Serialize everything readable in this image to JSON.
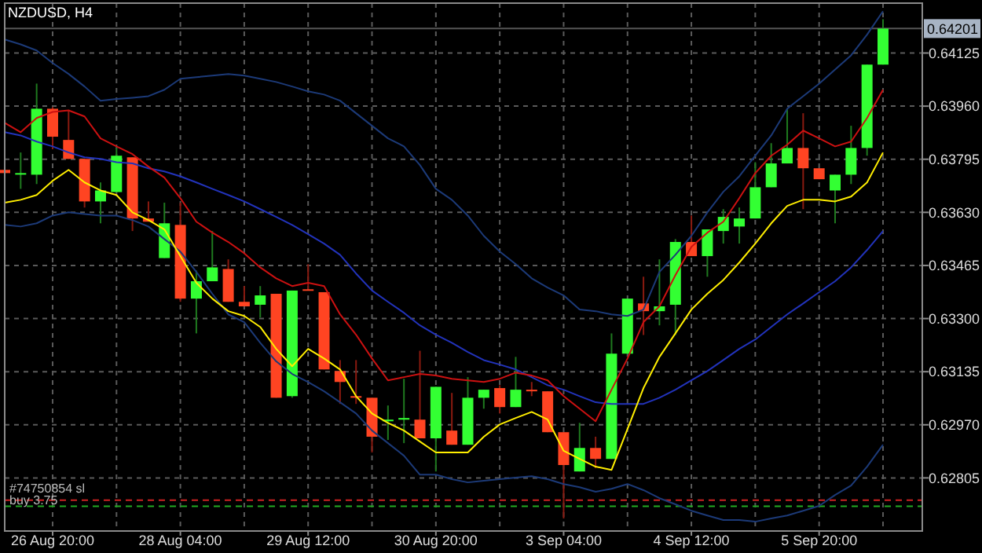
{
  "chart_data": {
    "type": "candlestick",
    "title": "NZDUSD, H4",
    "categories": [
      null,
      null,
      null,
      "26 Aug 20:00",
      null,
      null,
      null,
      null,
      null,
      null,
      null,
      "28 Aug 04:00",
      null,
      null,
      null,
      null,
      null,
      null,
      null,
      "29 Aug 12:00",
      null,
      null,
      null,
      null,
      null,
      null,
      null,
      "30 Aug 20:00",
      null,
      null,
      null,
      null,
      null,
      null,
      null,
      "3 Sep 04:00",
      null,
      null,
      null,
      null,
      null,
      null,
      null,
      "4 Sep 12:00",
      null,
      null,
      null,
      null,
      null,
      null,
      null,
      "5 Sep 20:00",
      null,
      null,
      null,
      null
    ],
    "ohlc": [
      [
        0.63762,
        0.63767,
        0.63747,
        0.63752
      ],
      [
        0.63752,
        0.63816,
        0.63703,
        0.63752
      ],
      [
        0.63747,
        0.6403,
        0.63718,
        0.63952
      ],
      [
        0.63952,
        0.63957,
        0.63826,
        0.63865
      ],
      [
        0.63855,
        0.63947,
        0.63796,
        0.63796
      ],
      [
        0.63796,
        0.63796,
        0.63645,
        0.63664
      ],
      [
        0.63664,
        0.63723,
        0.63596,
        0.63698
      ],
      [
        0.63693,
        0.6383,
        0.63693,
        0.63806
      ],
      [
        0.63801,
        0.63801,
        0.63572,
        0.63611
      ],
      [
        0.63611,
        0.63664,
        0.63601,
        0.63601
      ],
      [
        0.63488,
        0.6366,
        0.63488,
        0.63596
      ],
      [
        0.63591,
        0.6366,
        0.63352,
        0.63362
      ],
      [
        0.63362,
        0.63449,
        0.63254,
        0.63416
      ],
      [
        0.63416,
        0.63572,
        0.63416,
        0.63459
      ],
      [
        0.63454,
        0.63484,
        0.63352,
        0.63352
      ],
      [
        0.63352,
        0.63401,
        0.63338,
        0.63338
      ],
      [
        0.63343,
        0.63401,
        0.63303,
        0.63372
      ],
      [
        0.63377,
        0.63377,
        0.63054,
        0.63054
      ],
      [
        0.63059,
        0.63387,
        0.63054,
        0.63387
      ],
      [
        0.63391,
        0.63469,
        0.63387,
        0.63387
      ],
      [
        0.63382,
        0.63382,
        0.63142,
        0.63142
      ],
      [
        0.63137,
        0.63171,
        0.63035,
        0.63103
      ],
      [
        0.63059,
        0.63171,
        0.63035,
        0.63054
      ],
      [
        0.63054,
        0.63054,
        0.62884,
        0.62933
      ],
      [
        0.62981,
        0.6303,
        0.62923,
        0.62986
      ],
      [
        0.62986,
        0.63113,
        0.62913,
        0.62991
      ],
      [
        0.62986,
        0.632,
        0.62928,
        0.62928
      ],
      [
        0.62928,
        0.63088,
        0.62825,
        0.63088
      ],
      [
        0.62952,
        0.63069,
        0.62908,
        0.62908
      ],
      [
        0.62908,
        0.63118,
        0.62908,
        0.63054
      ],
      [
        0.63054,
        0.63079,
        0.6302,
        0.63079
      ],
      [
        0.63084,
        0.63093,
        0.63005,
        0.63025
      ],
      [
        0.63025,
        0.63181,
        0.63025,
        0.63079
      ],
      [
        0.63079,
        0.63103,
        0.63059,
        0.63074
      ],
      [
        0.63074,
        0.63074,
        0.62947,
        0.62947
      ],
      [
        0.62947,
        0.62947,
        0.62679,
        0.62845
      ],
      [
        0.62825,
        0.62976,
        0.62825,
        0.62898
      ],
      [
        0.62898,
        0.62933,
        0.62835,
        0.62864
      ],
      [
        0.62864,
        0.63254,
        0.62864,
        0.63191
      ],
      [
        0.63191,
        0.63362,
        0.63191,
        0.63362
      ],
      [
        0.63347,
        0.6343,
        0.63249,
        0.63323
      ],
      [
        0.63323,
        0.63484,
        0.63279,
        0.63338
      ],
      [
        0.63343,
        0.63547,
        0.63249,
        0.63538
      ],
      [
        0.63538,
        0.6362,
        0.63494,
        0.63494
      ],
      [
        0.63494,
        0.63577,
        0.6343,
        0.63577
      ],
      [
        0.63572,
        0.6364,
        0.63533,
        0.63616
      ],
      [
        0.63586,
        0.63645,
        0.63533,
        0.63611
      ],
      [
        0.63611,
        0.63786,
        0.63611,
        0.63708
      ],
      [
        0.63708,
        0.63845,
        0.63708,
        0.63782
      ],
      [
        0.63782,
        0.63952,
        0.63782,
        0.6383
      ],
      [
        0.6383,
        0.63938,
        0.6364,
        0.63767
      ],
      [
        0.63767,
        0.63767,
        0.63733,
        0.63733
      ],
      [
        0.63698,
        0.63747,
        0.63596,
        0.63747
      ],
      [
        0.63747,
        0.63899,
        0.63718,
        0.6383
      ],
      [
        0.6383,
        0.64089,
        0.63806,
        0.64089
      ],
      [
        0.64089,
        0.6423,
        0.64089,
        0.64201
      ]
    ],
    "colors": [
      "#ff4422",
      "#33ff33",
      "#33ff33",
      "#ff4422",
      "#ff4422",
      "#ff4422",
      "#33ff33",
      "#33ff33",
      "#ff4422",
      "#ff4422",
      "#33ff33",
      "#ff4422",
      "#33ff33",
      "#33ff33",
      "#ff4422",
      "#ff4422",
      "#33ff33",
      "#ff4422",
      "#33ff33",
      "#ff4422",
      "#ff4422",
      "#ff4422",
      "#ff4422",
      "#ff4422",
      "#33ff33",
      "#33ff33",
      "#ff4422",
      "#33ff33",
      "#ff4422",
      "#33ff33",
      "#33ff33",
      "#ff4422",
      "#33ff33",
      "#ff4422",
      "#ff4422",
      "#ff4422",
      "#33ff33",
      "#ff4422",
      "#33ff33",
      "#33ff33",
      "#ff4422",
      "#33ff33",
      "#33ff33",
      "#ff4422",
      "#33ff33",
      "#33ff33",
      "#33ff33",
      "#33ff33",
      "#33ff33",
      "#33ff33",
      "#ff4422",
      "#ff4422",
      "#33ff33",
      "#33ff33",
      "#33ff33",
      "#33ff33"
    ],
    "series": [
      {
        "type": "line",
        "color": "#1c3a78",
        "values": [
          0.64167,
          0.64152,
          0.64133,
          0.64094,
          0.6406,
          0.64021,
          0.63977,
          0.63982,
          0.63986,
          0.63991,
          0.64011,
          0.64045,
          0.6405,
          0.64055,
          0.6406,
          0.64055,
          0.64045,
          0.64035,
          0.64021,
          0.64006,
          0.63996,
          0.63977,
          0.63938,
          0.63899,
          0.6386,
          0.63835,
          0.63777,
          0.63703,
          0.63669,
          0.6362,
          0.63557,
          0.63508,
          0.63469,
          0.63425,
          0.63396,
          0.63372,
          0.63328,
          0.63323,
          0.63313,
          0.63308,
          0.63328,
          0.63445,
          0.63498,
          0.63557,
          0.6363,
          0.63694,
          0.63742,
          0.63806,
          0.63869,
          0.63952,
          0.63991,
          0.6403,
          0.64074,
          0.64118,
          0.64182,
          0.64255
        ]
      },
      {
        "type": "line",
        "color": "#2233bb",
        "values": [
          0.63879,
          0.63869,
          0.6385,
          0.63835,
          0.63816,
          0.63801,
          0.63796,
          0.63786,
          0.63782,
          0.63767,
          0.63757,
          0.63742,
          0.63723,
          0.63703,
          0.63684,
          0.63664,
          0.6364,
          0.63616,
          0.63591,
          0.63562,
          0.63533,
          0.63498,
          0.6344,
          0.63387,
          0.63352,
          0.63318,
          0.63279,
          0.6325,
          0.63225,
          0.63196,
          0.63171,
          0.63157,
          0.63142,
          0.63118,
          0.63093,
          0.63079,
          0.63059,
          0.6304,
          0.63035,
          0.63035,
          0.63035,
          0.63054,
          0.63079,
          0.63108,
          0.63137,
          0.63171,
          0.63206,
          0.63235,
          0.63274,
          0.63313,
          0.63347,
          0.63382,
          0.63416,
          0.63459,
          0.63513,
          0.63572
        ]
      },
      {
        "type": "line",
        "color": "#1c3a78",
        "values": [
          0.63591,
          0.63586,
          0.63596,
          0.6362,
          0.6363,
          0.63625,
          0.6362,
          0.6362,
          0.63606,
          0.63586,
          0.63547,
          0.63508,
          0.63445,
          0.63377,
          0.63313,
          0.63289,
          0.63225,
          0.63167,
          0.63128,
          0.63103,
          0.63074,
          0.6304,
          0.63005,
          0.62952,
          0.62913,
          0.62874,
          0.62815,
          0.62815,
          0.62801,
          0.62791,
          0.62796,
          0.62801,
          0.62806,
          0.6281,
          0.62801,
          0.62786,
          0.62776,
          0.62762,
          0.62771,
          0.62786,
          0.62767,
          0.62742,
          0.62723,
          0.62703,
          0.62688,
          0.62674,
          0.62674,
          0.62669,
          0.62679,
          0.62688,
          0.62703,
          0.62718,
          0.62752,
          0.62781,
          0.6284,
          0.62908
        ]
      },
      {
        "type": "line",
        "color": "#cc1111",
        "values": [
          0.63908,
          0.63879,
          0.63923,
          0.63942,
          0.63947,
          0.63928,
          0.6386,
          0.63835,
          0.63811,
          0.63772,
          0.63738,
          0.63674,
          0.63601,
          0.63567,
          0.63538,
          0.63503,
          0.63459,
          0.63425,
          0.63401,
          0.63411,
          0.63401,
          0.63313,
          0.6325,
          0.63176,
          0.63108,
          0.63118,
          0.63128,
          0.63123,
          0.63113,
          0.63108,
          0.63103,
          0.63113,
          0.63132,
          0.63123,
          0.63108,
          0.63059,
          0.6302,
          0.62981,
          0.63079,
          0.63176,
          0.63289,
          0.63338,
          0.63435,
          0.63523,
          0.63567,
          0.63601,
          0.63674,
          0.63752,
          0.63806,
          0.6384,
          0.63884,
          0.6386,
          0.63835,
          0.6385,
          0.63923,
          0.64011
        ]
      },
      {
        "type": "line",
        "color": "#ffee00",
        "values": [
          0.6366,
          0.63669,
          0.63684,
          0.63728,
          0.63762,
          0.63723,
          0.63698,
          0.63684,
          0.6363,
          0.63606,
          0.63577,
          0.63494,
          0.63411,
          0.63362,
          0.63323,
          0.63308,
          0.63274,
          0.63206,
          0.63152,
          0.63206,
          0.63176,
          0.63142,
          0.63059,
          0.63005,
          0.62976,
          0.62952,
          0.62918,
          0.62884,
          0.62884,
          0.62884,
          0.62933,
          0.62971,
          0.62991,
          0.6301,
          0.62986,
          0.62889,
          0.62864,
          0.6284,
          0.6283,
          0.62957,
          0.63084,
          0.63181,
          0.63254,
          0.63328,
          0.63377,
          0.6342,
          0.63474,
          0.63533,
          0.63596,
          0.6365,
          0.63669,
          0.63669,
          0.63664,
          0.63679,
          0.63723,
          0.63816
        ]
      }
    ],
    "ylim": [
      0.6264,
      0.6428
    ],
    "yticks": [
      0.62805,
      {
        "value": 0.6297,
        "label": "0.62970"
      },
      0.63135,
      {
        "value": 0.633,
        "label": "0.63300"
      },
      0.63465,
      {
        "value": 0.6363,
        "label": "0.63630"
      },
      0.63795,
      {
        "value": 0.6396,
        "label": "0.63960"
      },
      0.64125
    ],
    "grid": true,
    "ref_lines": [
      {
        "axis": "y",
        "value": 0.64201,
        "label": "0.64201",
        "color": "#555555",
        "line_style": "solid"
      },
      {
        "axis": "y",
        "value": 0.62736,
        "label": "#74750854 sl",
        "color": "#cc2222",
        "line_style": "dashed"
      },
      {
        "axis": "y",
        "value": 0.62717,
        "label": "buy 3.75",
        "color": "#22aa22",
        "line_style": "dashed"
      }
    ]
  }
}
